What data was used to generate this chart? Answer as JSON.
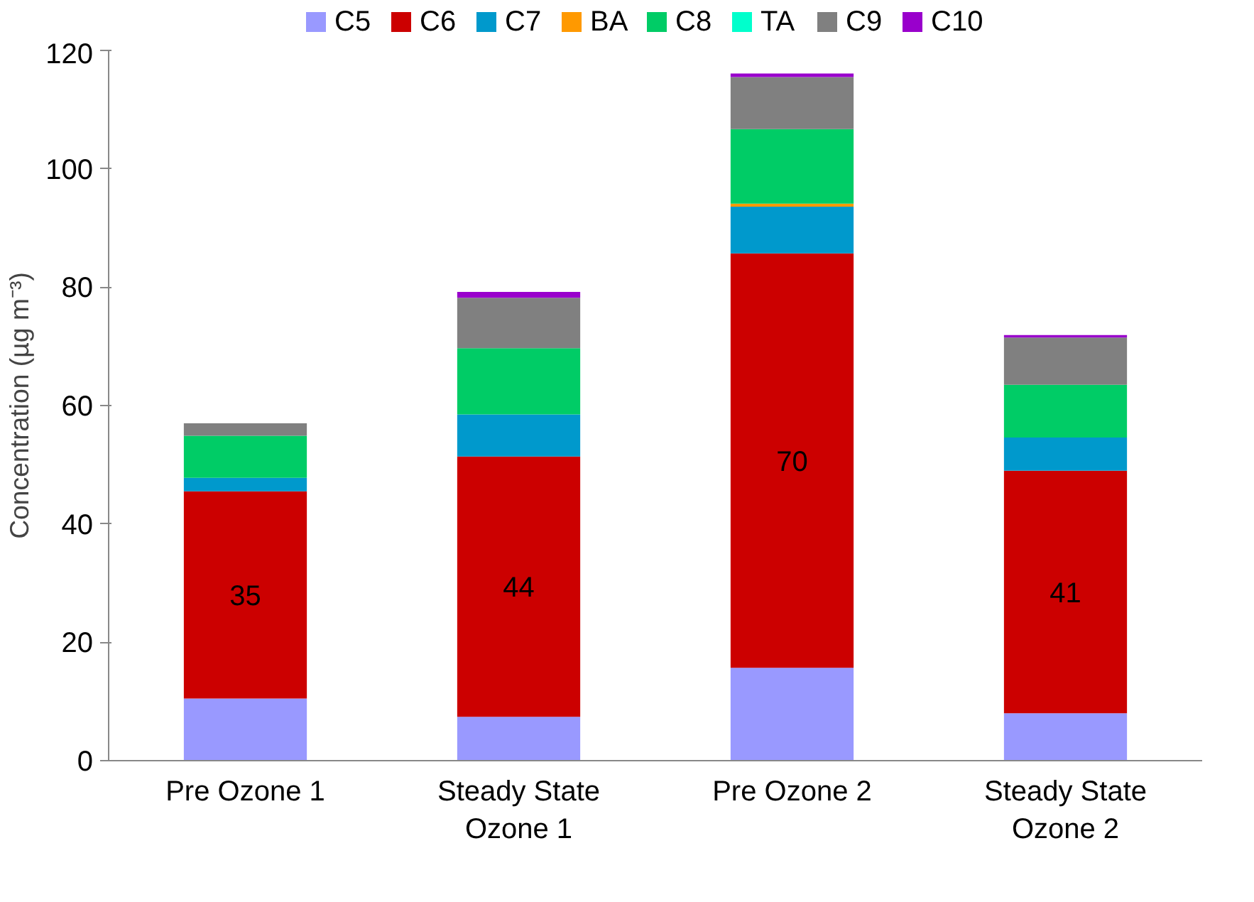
{
  "chart_data": {
    "type": "bar",
    "stacked": true,
    "ylabel": "Concentration (µg m⁻³)",
    "categories": [
      "Pre Ozone 1",
      "Steady State\nOzone 1",
      "Pre Ozone 2",
      "Steady State\nOzone 2"
    ],
    "series": [
      {
        "name": "C5",
        "color": "#9999ff",
        "values": [
          10.5,
          7.4,
          15.7,
          8.0
        ]
      },
      {
        "name": "C6",
        "color": "#cc0000",
        "values": [
          35,
          44,
          70,
          41
        ],
        "value_labels": [
          "35",
          "44",
          "70",
          "41"
        ]
      },
      {
        "name": "C7",
        "color": "#0099cc",
        "values": [
          2.3,
          7.1,
          7.9,
          5.6
        ]
      },
      {
        "name": "BA",
        "color": "#ff9900",
        "values": [
          0,
          0,
          0.5,
          0
        ]
      },
      {
        "name": "C8",
        "color": "#00cc66",
        "values": [
          7.1,
          11.2,
          12.6,
          8.9
        ]
      },
      {
        "name": "TA",
        "color": "#00ffcc",
        "values": [
          0,
          0,
          0,
          0
        ]
      },
      {
        "name": "C9",
        "color": "#808080",
        "values": [
          2.1,
          8.5,
          8.8,
          8.0
        ]
      },
      {
        "name": "C10",
        "color": "#9900cc",
        "values": [
          0,
          1.0,
          0.6,
          0.4
        ]
      }
    ],
    "ylim": [
      0,
      120
    ],
    "yticks": [
      0,
      20,
      40,
      60,
      80,
      100,
      120
    ],
    "grid": false,
    "legend": "top"
  }
}
